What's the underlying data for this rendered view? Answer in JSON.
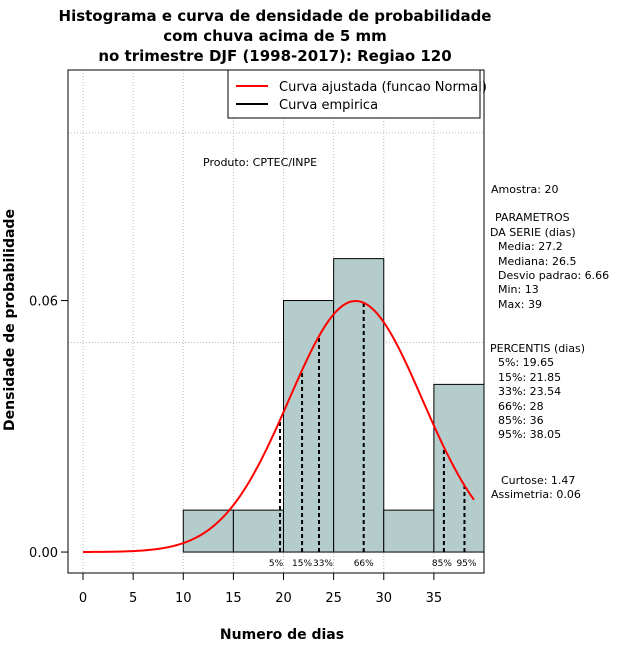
{
  "chart_data": {
    "type": "histogram",
    "title": [
      "Histograma e curva de densidade de probabilidade",
      "com chuva acima de 5 mm",
      "no trimestre DJF (1998-2017): Regiao 120"
    ],
    "xlabel": "Numero de dias",
    "ylabel": "Densidade de probabilidade",
    "xlim": [
      -1.5,
      40
    ],
    "ylim": [
      -0.005,
      0.115
    ],
    "xticks": [
      0,
      5,
      10,
      15,
      20,
      25,
      30,
      35
    ],
    "yticks": [
      0.0,
      0.06
    ],
    "ytick_labels": [
      "0.00",
      "0.06"
    ],
    "ygrid": [
      0.05,
      0.1
    ],
    "xgrid": [
      0,
      5,
      10,
      15,
      20,
      25,
      30,
      35
    ],
    "bar_color": "#b4cccb",
    "bins": [
      {
        "x0": 10,
        "x1": 15,
        "density": 0.01
      },
      {
        "x0": 15,
        "x1": 20,
        "density": 0.01
      },
      {
        "x0": 20,
        "x1": 25,
        "density": 0.06
      },
      {
        "x0": 25,
        "x1": 30,
        "density": 0.07
      },
      {
        "x0": 30,
        "x1": 35,
        "density": 0.01
      },
      {
        "x0": 35,
        "x1": 40,
        "density": 0.04
      }
    ],
    "normal_fit": {
      "mean": 27.2,
      "sd": 6.66,
      "x_from": 0,
      "x_to": 39,
      "color": "#ff0000",
      "label": "Curva ajustada (funcao Normal)"
    },
    "empirical": {
      "color": "#000000",
      "label": "Curva empirica"
    },
    "percentiles": [
      {
        "label": "5%",
        "value": 19.65
      },
      {
        "label": "15%",
        "value": 21.85
      },
      {
        "label": "33%",
        "value": 23.54
      },
      {
        "label": "66%",
        "value": 28
      },
      {
        "label": "85%",
        "value": 36
      },
      {
        "label": "95%",
        "value": 38.05
      }
    ],
    "product_note": "Produto: CPTEC/INPE",
    "stats_lines": [
      "Amostra: 20",
      " PARAMETROS",
      "DA SERIE (dias)",
      "  Media: 27.2",
      "  Mediana: 26.5",
      "  Desvio padrao: 6.66",
      "  Min: 13",
      "  Max: 39",
      "PERCENTIS (dias)",
      "  5%: 19.65",
      "  15%: 21.85",
      "  33%: 23.54",
      "  66%: 28",
      "  85%: 36",
      "  95%: 38.05",
      "Curtose: 1.47",
      "Assimetria: 0.06"
    ]
  }
}
